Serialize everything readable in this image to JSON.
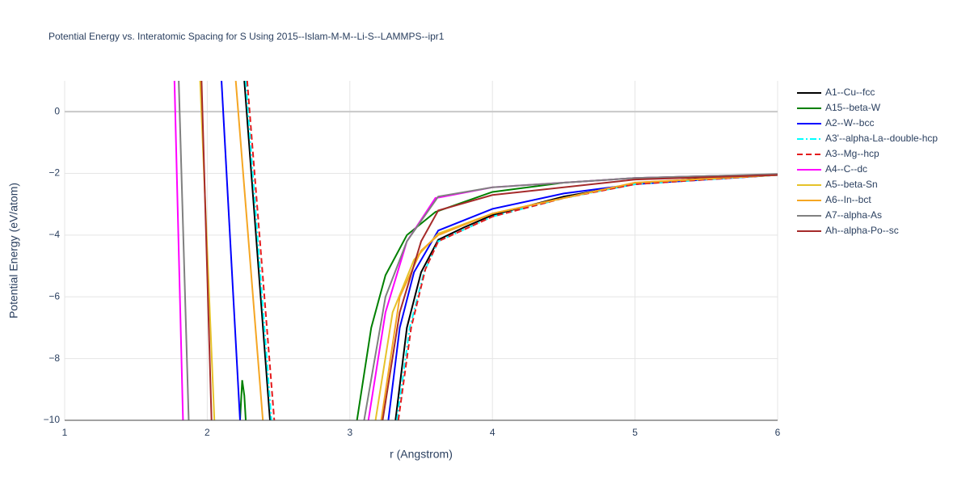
{
  "chart_data": {
    "type": "line",
    "title": "Potential Energy vs. Interatomic Spacing for S Using 2015--Islam-M-M--Li-S--LAMMPS--ipr1",
    "x_label": "r (Angstrom)",
    "y_label": "Potential Energy (eV/atom)",
    "xlim": [
      1,
      6
    ],
    "ylim": [
      -10,
      1
    ],
    "xticks": [
      1,
      2,
      3,
      4,
      5,
      6
    ],
    "yticks": [
      {
        "value": -10,
        "label": "−10"
      },
      {
        "value": -8,
        "label": "−8"
      },
      {
        "value": -6,
        "label": "−6"
      },
      {
        "value": -4,
        "label": "−4"
      },
      {
        "value": -2,
        "label": "−2"
      },
      0
    ],
    "grid": true,
    "legend": "right",
    "series": [
      {
        "name": "A1--Cu--fcc",
        "color": "#000000",
        "dash": "solid",
        "x": [
          2.26,
          2.44,
          null,
          3.32,
          3.4,
          3.5,
          3.62,
          3.8,
          4,
          4.5,
          5,
          5.5,
          6
        ],
        "values": [
          1,
          -10,
          null,
          -10,
          -7,
          -5.2,
          -4.15,
          -3.75,
          -3.35,
          -2.75,
          -2.35,
          -2.15,
          -2.05
        ]
      },
      {
        "name": "A15--beta-W",
        "color": "#008000",
        "dash": "solid",
        "x": [
          2.23,
          2.245,
          2.26,
          2.27,
          null,
          3.05,
          3.15,
          3.25,
          3.4,
          3.6,
          4,
          4.5,
          5,
          6
        ],
        "values": [
          -10,
          -8.7,
          -9.2,
          -10,
          null,
          -10,
          -7,
          -5.3,
          -4,
          -3.25,
          -2.6,
          -2.3,
          -2.15,
          -2.03
        ]
      },
      {
        "name": "A2--W--bcc",
        "color": "#0000ff",
        "dash": "solid",
        "x": [
          2.1,
          2.23,
          null,
          3.27,
          3.35,
          3.45,
          3.62,
          4,
          4.5,
          5,
          6
        ],
        "values": [
          1,
          -10,
          null,
          -10,
          -7,
          -5.2,
          -3.85,
          -3.15,
          -2.65,
          -2.35,
          -2.05
        ]
      },
      {
        "name": "A3'--alpha-La--double-hcp",
        "color": "#00ffff",
        "dash": "dashdot",
        "x": [
          2.27,
          2.45,
          null,
          3.33,
          3.42,
          3.52,
          3.62,
          4,
          4.5,
          5,
          6
        ],
        "values": [
          1,
          -10,
          null,
          -10,
          -7,
          -5.2,
          -4.2,
          -3.4,
          -2.8,
          -2.35,
          -2.05
        ]
      },
      {
        "name": "A3--Mg--hcp",
        "color": "#e41a1c",
        "dash": "dash",
        "x": [
          2.28,
          2.47,
          null,
          3.34,
          3.43,
          3.53,
          3.62,
          4,
          4.5,
          5,
          6
        ],
        "values": [
          1,
          -10,
          null,
          -10,
          -7,
          -5.1,
          -4.2,
          -3.4,
          -2.8,
          -2.35,
          -2.05
        ]
      },
      {
        "name": "A4--C--dc",
        "color": "#ff00ff",
        "dash": "solid",
        "x": [
          1.77,
          1.83,
          null,
          3.13,
          3.25,
          3.4,
          3.6,
          4,
          5,
          6
        ],
        "values": [
          1,
          -10,
          null,
          -10,
          -6.5,
          -4.2,
          -2.8,
          -2.45,
          -2.15,
          -2.03
        ]
      },
      {
        "name": "A5--beta-Sn",
        "color": "#e6c229",
        "dash": "solid",
        "x": [
          1.95,
          2.05,
          null,
          3.18,
          3.3,
          3.45,
          3.62,
          4,
          5,
          6
        ],
        "values": [
          1,
          -10,
          null,
          -10,
          -6.5,
          -4.8,
          -3.95,
          -3.3,
          -2.3,
          -2.05
        ]
      },
      {
        "name": "A6--In--bct",
        "color": "#f5a623",
        "dash": "solid",
        "x": [
          2.2,
          2.39,
          null,
          3.22,
          3.35,
          3.5,
          3.62,
          4,
          5,
          6
        ],
        "values": [
          1,
          -10,
          null,
          -10,
          -6,
          -4.5,
          -4,
          -3.3,
          -2.3,
          -2.05
        ]
      },
      {
        "name": "A7--alpha-As",
        "color": "#808080",
        "dash": "solid",
        "x": [
          1.8,
          1.87,
          null,
          3.1,
          3.25,
          3.4,
          3.62,
          4,
          5,
          6
        ],
        "values": [
          1,
          -10,
          null,
          -10,
          -6,
          -4.2,
          -2.75,
          -2.45,
          -2.15,
          -2.02
        ]
      },
      {
        "name": "Ah--alpha-Po--sc",
        "color": "#a52a2a",
        "dash": "solid",
        "x": [
          1.96,
          2.03,
          null,
          3.23,
          3.35,
          3.5,
          3.62,
          4,
          5,
          6
        ],
        "values": [
          1,
          -10,
          null,
          -10,
          -6.5,
          -4.2,
          -3.2,
          -2.7,
          -2.2,
          -2.05
        ]
      }
    ]
  }
}
